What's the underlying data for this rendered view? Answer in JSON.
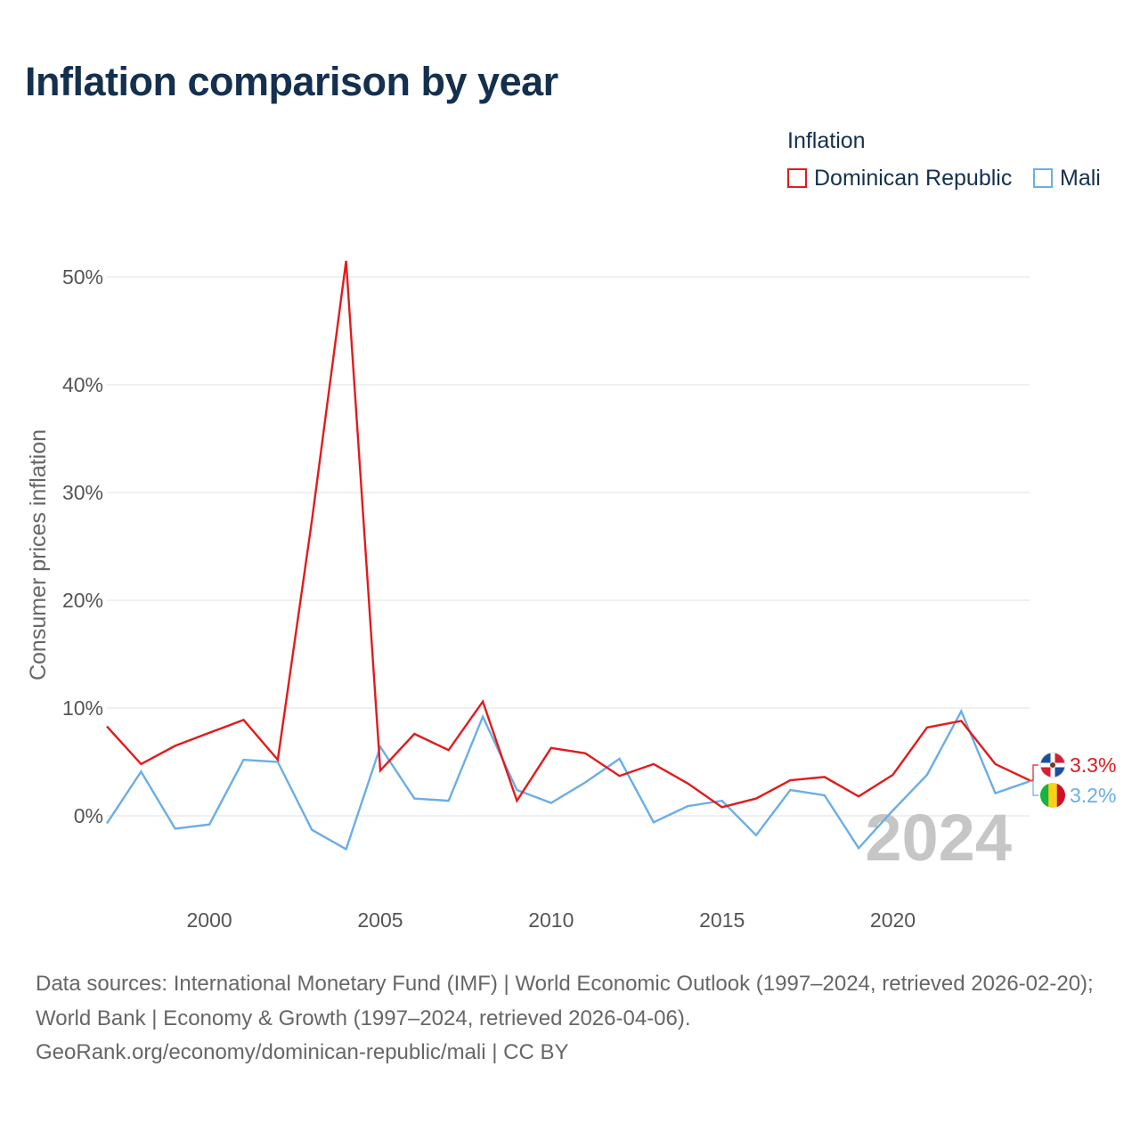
{
  "title": "Inflation comparison by year",
  "legend": {
    "title": "Inflation",
    "items": [
      {
        "label": "Dominican Republic",
        "color": "#e31a1c"
      },
      {
        "label": "Mali",
        "color": "#6aaee6"
      }
    ]
  },
  "chart_data": {
    "type": "line",
    "title": "Inflation comparison by year",
    "xlabel": "",
    "ylabel": "Consumer prices inflation",
    "x": [
      1997,
      1998,
      1999,
      2000,
      2001,
      2002,
      2003,
      2004,
      2005,
      2006,
      2007,
      2008,
      2009,
      2010,
      2011,
      2012,
      2013,
      2014,
      2015,
      2016,
      2017,
      2018,
      2019,
      2020,
      2021,
      2022,
      2023,
      2024
    ],
    "xticks": [
      2000,
      2005,
      2010,
      2015,
      2020
    ],
    "yticks": [
      0,
      10,
      20,
      30,
      40,
      50
    ],
    "ytick_labels": [
      "0%",
      "10%",
      "20%",
      "30%",
      "40%",
      "50%"
    ],
    "xlim": [
      1997,
      2024
    ],
    "ylim": [
      -7.5,
      55
    ],
    "grid": true,
    "legend_position": "top-right",
    "year_watermark": "2024",
    "series": [
      {
        "name": "Dominican Republic",
        "color": "#e31a1c",
        "values": [
          8.3,
          4.8,
          6.5,
          7.7,
          8.9,
          5.2,
          27.4,
          51.5,
          4.2,
          7.6,
          6.1,
          10.6,
          1.4,
          6.3,
          5.8,
          3.7,
          4.8,
          3.0,
          0.8,
          1.6,
          3.3,
          3.6,
          1.8,
          3.8,
          8.2,
          8.8,
          4.8,
          3.3
        ],
        "end_label": "3.3%"
      },
      {
        "name": "Mali",
        "color": "#6aaee6",
        "values": [
          -0.7,
          4.1,
          -1.2,
          -0.8,
          5.2,
          5.0,
          -1.3,
          -3.1,
          6.4,
          1.6,
          1.4,
          9.2,
          2.4,
          1.2,
          3.1,
          5.3,
          -0.6,
          0.9,
          1.4,
          -1.8,
          2.4,
          1.9,
          -3.0,
          0.5,
          3.8,
          9.7,
          2.1,
          3.2
        ],
        "end_label": "3.2%"
      }
    ]
  },
  "footer": {
    "sources": "Data sources: International Monetary Fund (IMF) | World Economic Outlook (1997–2024, retrieved 2026-02-20); World Bank | Economy & Growth (1997–2024, retrieved 2026-04-06).",
    "attribution": "GeoRank.org/economy/dominican-republic/mali | CC BY"
  }
}
